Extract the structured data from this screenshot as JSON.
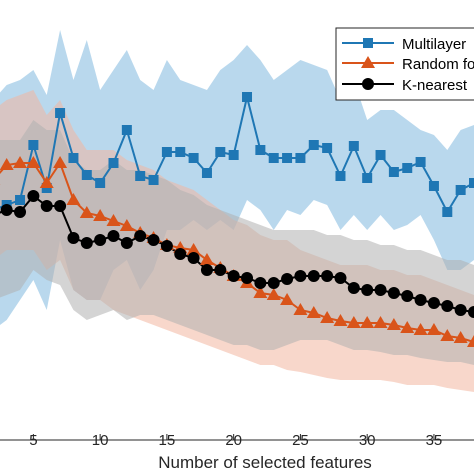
{
  "chart_data": {
    "type": "line",
    "xlabel": "Number of selected features",
    "ylabel": "",
    "xlim": [
      2.5,
      38
    ],
    "ylim": [
      0,
      474
    ],
    "x_ticks": [
      5,
      10,
      15,
      20,
      25,
      30,
      35
    ],
    "x_tick_labels": [
      "5",
      "10",
      "15",
      "20",
      "25",
      "30",
      "35"
    ],
    "y_orientation": "downward_screen_units_proxy",
    "legend": {
      "placement": "top-right",
      "entries": [
        "Multilayer",
        "Random fo",
        "K-nearest"
      ]
    },
    "series": [
      {
        "name": "Multilayer",
        "color": "#1f77b4",
        "band_color": "#7fb8de",
        "marker": "square",
        "x": [
          2,
          3,
          4,
          5,
          6,
          7,
          8,
          9,
          10,
          11,
          12,
          13,
          14,
          15,
          16,
          17,
          18,
          19,
          20,
          21,
          22,
          23,
          24,
          25,
          26,
          27,
          28,
          29,
          30,
          31,
          32,
          33,
          34,
          35,
          36,
          37,
          38
        ],
        "y": [
          210,
          205,
          200,
          145,
          188,
          113,
          158,
          175,
          183,
          163,
          130,
          176,
          180,
          152,
          152,
          158,
          173,
          152,
          155,
          97,
          150,
          158,
          158,
          158,
          145,
          148,
          176,
          146,
          178,
          155,
          172,
          168,
          162,
          186,
          212,
          190,
          183
        ],
        "band_upper": [
          100,
          85,
          80,
          70,
          95,
          30,
          80,
          40,
          90,
          70,
          50,
          80,
          90,
          60,
          80,
          85,
          90,
          70,
          60,
          45,
          60,
          80,
          70,
          60,
          65,
          70,
          100,
          80,
          120,
          110,
          110,
          120,
          130,
          135,
          150,
          130,
          125
        ],
        "band_lower": [
          330,
          320,
          300,
          280,
          310,
          240,
          290,
          300,
          300,
          270,
          260,
          290,
          270,
          230,
          230,
          220,
          230,
          220,
          230,
          200,
          210,
          230,
          210,
          215,
          200,
          205,
          230,
          215,
          230,
          215,
          230,
          225,
          215,
          240,
          270,
          270,
          260
        ]
      },
      {
        "name": "Random fo",
        "color": "#d9541a",
        "band_color": "#f2b7a0",
        "marker": "triangle",
        "x": [
          2,
          3,
          4,
          5,
          6,
          7,
          8,
          9,
          10,
          11,
          12,
          13,
          14,
          15,
          16,
          17,
          18,
          19,
          20,
          21,
          22,
          23,
          24,
          25,
          26,
          27,
          28,
          29,
          30,
          31,
          32,
          33,
          34,
          35,
          36,
          37,
          38
        ],
        "y": [
          180,
          165,
          163,
          163,
          183,
          163,
          200,
          213,
          216,
          221,
          226,
          233,
          238,
          245,
          248,
          250,
          260,
          268,
          276,
          283,
          293,
          295,
          300,
          310,
          313,
          318,
          321,
          323,
          323,
          323,
          325,
          328,
          330,
          330,
          336,
          338,
          342
        ],
        "band_upper": [
          110,
          100,
          95,
          90,
          115,
          100,
          130,
          150,
          150,
          150,
          160,
          165,
          170,
          180,
          185,
          190,
          200,
          210,
          220,
          225,
          235,
          240,
          240,
          250,
          255,
          260,
          265,
          265,
          265,
          270,
          270,
          275,
          275,
          280,
          285,
          290,
          295
        ],
        "band_lower": [
          260,
          250,
          250,
          250,
          270,
          260,
          290,
          300,
          300,
          310,
          315,
          320,
          325,
          330,
          335,
          340,
          345,
          350,
          355,
          360,
          365,
          365,
          370,
          372,
          375,
          378,
          380,
          380,
          380,
          380,
          382,
          385,
          385,
          385,
          388,
          390,
          392
        ]
      },
      {
        "name": "K-nearest",
        "color": "#000000",
        "band_color": "#b0b0b0",
        "marker": "circle",
        "x": [
          2,
          3,
          4,
          5,
          6,
          7,
          8,
          9,
          10,
          11,
          12,
          13,
          14,
          15,
          16,
          17,
          18,
          19,
          20,
          21,
          22,
          23,
          24,
          25,
          26,
          27,
          28,
          29,
          30,
          31,
          32,
          33,
          34,
          35,
          36,
          37,
          38
        ],
        "y": [
          215,
          210,
          212,
          196,
          206,
          206,
          238,
          243,
          240,
          236,
          243,
          236,
          240,
          246,
          254,
          258,
          270,
          270,
          276,
          278,
          283,
          283,
          279,
          276,
          276,
          276,
          278,
          288,
          290,
          290,
          293,
          296,
          300,
          303,
          306,
          310,
          312
        ],
        "band_upper": [
          140,
          140,
          140,
          120,
          130,
          130,
          160,
          170,
          170,
          160,
          170,
          170,
          175,
          180,
          190,
          195,
          205,
          210,
          215,
          220,
          225,
          230,
          230,
          230,
          230,
          235,
          235,
          240,
          240,
          245,
          245,
          250,
          250,
          255,
          260,
          260,
          265
        ],
        "band_lower": [
          300,
          295,
          290,
          270,
          280,
          285,
          310,
          320,
          315,
          310,
          320,
          315,
          315,
          320,
          325,
          330,
          335,
          340,
          345,
          345,
          350,
          350,
          345,
          340,
          340,
          340,
          345,
          350,
          350,
          352,
          355,
          355,
          358,
          360,
          362,
          362,
          365
        ]
      }
    ]
  }
}
